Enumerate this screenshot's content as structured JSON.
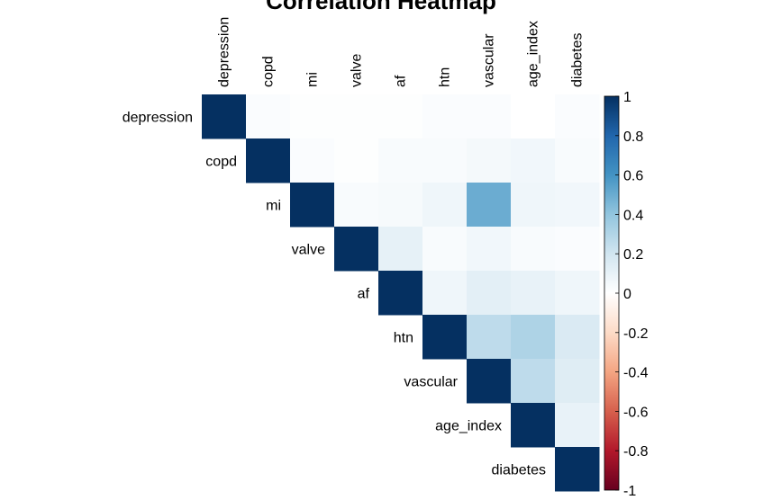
{
  "chart_data": {
    "type": "heatmap",
    "title": "Correlation Heatmap",
    "variables": [
      "depression",
      "copd",
      "mi",
      "valve",
      "af",
      "htn",
      "vascular",
      "age_index",
      "diabetes"
    ],
    "layout": "upper-triangle",
    "matrix": [
      [
        1,
        0.02,
        0.01,
        0.01,
        0.01,
        0.02,
        0.02,
        0.0,
        0.02
      ],
      [
        null,
        1,
        0.02,
        0.01,
        0.03,
        0.03,
        0.05,
        0.06,
        0.03
      ],
      [
        null,
        null,
        1,
        0.03,
        0.04,
        0.07,
        0.5,
        0.07,
        0.06
      ],
      [
        null,
        null,
        null,
        1,
        0.11,
        0.03,
        0.06,
        0.03,
        0.02
      ],
      [
        null,
        null,
        null,
        null,
        1,
        0.07,
        0.12,
        0.1,
        0.07
      ],
      [
        null,
        null,
        null,
        null,
        null,
        1,
        0.26,
        0.31,
        0.16
      ],
      [
        null,
        null,
        null,
        null,
        null,
        null,
        1,
        0.26,
        0.14
      ],
      [
        null,
        null,
        null,
        null,
        null,
        null,
        null,
        1,
        0.1
      ],
      [
        null,
        null,
        null,
        null,
        null,
        null,
        null,
        null,
        1
      ]
    ],
    "color_scale": {
      "range": [
        -1,
        1
      ],
      "ticks": [
        "1",
        "0.8",
        "0.6",
        "0.4",
        "0.2",
        "0",
        "-0.2",
        "-0.4",
        "-0.6",
        "-0.8",
        "-1"
      ],
      "colors": [
        "#67001F",
        "#B2182B",
        "#D6604D",
        "#F4A582",
        "#FDDBC7",
        "#FFFFFF",
        "#D1E5F0",
        "#92C5DE",
        "#4393C3",
        "#2166AC",
        "#053061"
      ],
      "placement": "right"
    },
    "grid": false
  }
}
